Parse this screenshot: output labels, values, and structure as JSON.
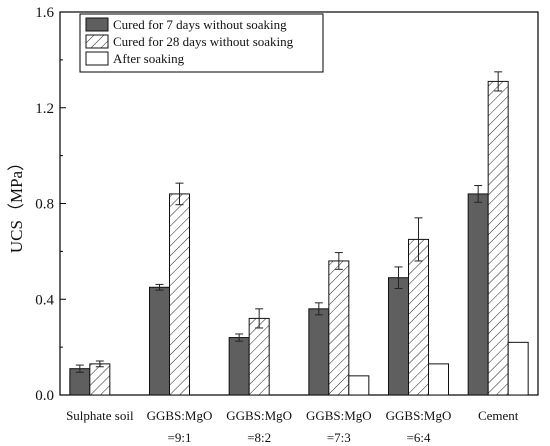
{
  "chart_data": {
    "type": "bar",
    "title": "",
    "xlabel": "",
    "ylabel": "UCS（MPa）",
    "ylim": [
      0,
      1.6
    ],
    "yticks": [
      "0.0",
      "0.4",
      "0.8",
      "1.2",
      "1.6"
    ],
    "ytick_values": [
      0,
      0.4,
      0.8,
      1.2,
      1.6
    ],
    "categories": [
      {
        "line1": "Sulphate soil",
        "line2": ""
      },
      {
        "line1": "GGBS:MgO",
        "line2": "=9:1"
      },
      {
        "line1": "GGBS:MgO",
        "line2": "=8:2"
      },
      {
        "line1": "GGBS:MgO",
        "line2": "=7:3"
      },
      {
        "line1": "GGBS:MgO",
        "line2": "=6:4"
      },
      {
        "line1": "Cement",
        "line2": ""
      }
    ],
    "series": [
      {
        "name": "Cured for 7 days without soaking",
        "fill": "solid",
        "color": "#5f5f5f",
        "values": [
          0.11,
          0.45,
          0.24,
          0.36,
          0.49,
          0.84
        ],
        "errors": [
          0.015,
          0.012,
          0.015,
          0.025,
          0.045,
          0.035
        ]
      },
      {
        "name": "Cured for 28 days without soaking",
        "fill": "hatch",
        "color": "#ffffff",
        "values": [
          0.13,
          0.84,
          0.32,
          0.56,
          0.65,
          1.31
        ],
        "errors": [
          0.012,
          0.045,
          0.04,
          0.035,
          0.09,
          0.04
        ]
      },
      {
        "name": "After soaking",
        "fill": "open",
        "color": "#ffffff",
        "values": [
          null,
          null,
          null,
          0.08,
          0.13,
          0.22
        ],
        "errors": [
          null,
          null,
          null,
          null,
          null,
          null
        ]
      }
    ],
    "legend": "top-left",
    "grid": false
  }
}
